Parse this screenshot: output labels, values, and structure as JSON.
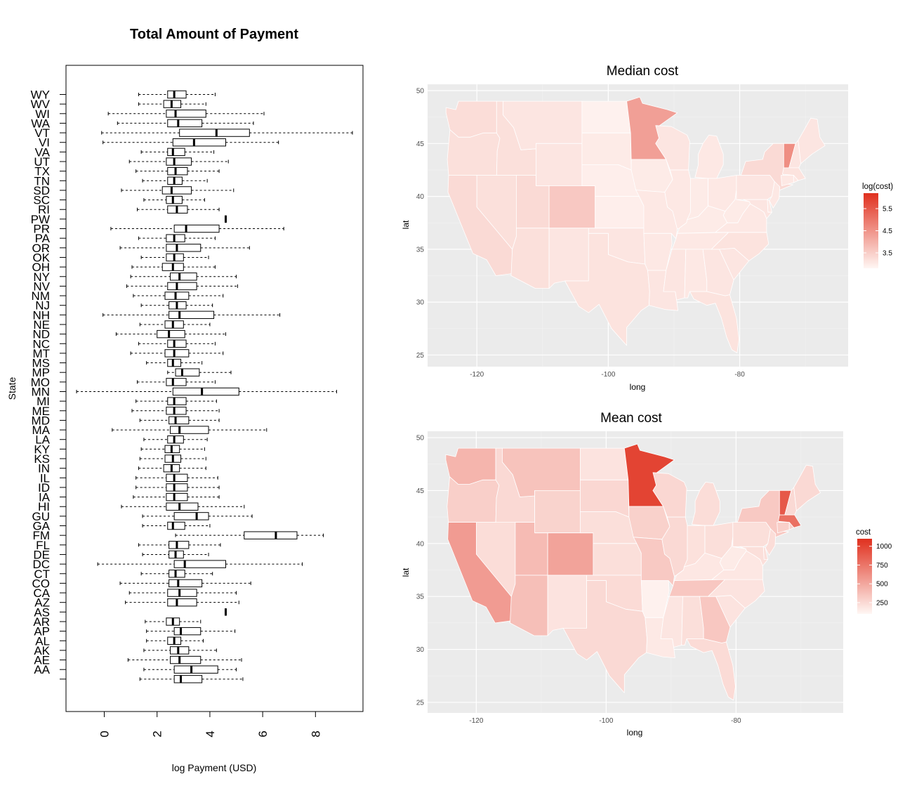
{
  "colors": {
    "panel_bg": "#ebebeb",
    "grid": "#ffffff",
    "map_low": "#fff7f4",
    "map_high": "#e0301e",
    "median_fill": "#fbece6",
    "state_border": "#ffffff"
  },
  "chart_data": [
    {
      "type": "boxplot",
      "title": "Total Amount of Payment",
      "xlabel": "log Payment (USD)",
      "ylabel": "State",
      "xlim": [
        -1.45,
        9.8
      ],
      "xticks": [
        0,
        2,
        4,
        6,
        8
      ],
      "orientation": "horizontal",
      "series": [
        {
          "state": "WY",
          "min": 1.3,
          "q1": 2.4,
          "median": 2.65,
          "q3": 3.1,
          "max": 4.2
        },
        {
          "state": "WV",
          "min": 1.3,
          "q1": 2.25,
          "median": 2.55,
          "q3": 2.9,
          "max": 3.85
        },
        {
          "state": "WI",
          "min": 0.15,
          "q1": 2.35,
          "median": 2.7,
          "q3": 3.85,
          "max": 6.05
        },
        {
          "state": "WA",
          "min": 0.5,
          "q1": 2.4,
          "median": 2.8,
          "q3": 3.7,
          "max": 5.65
        },
        {
          "state": "VT",
          "min": -0.1,
          "q1": 2.85,
          "median": 4.25,
          "q3": 5.5,
          "max": 9.4
        },
        {
          "state": "VI",
          "min": -0.05,
          "q1": 2.6,
          "median": 3.4,
          "q3": 4.6,
          "max": 6.6
        },
        {
          "state": "VA",
          "min": 1.4,
          "q1": 2.4,
          "median": 2.6,
          "q3": 3.05,
          "max": 4.15
        },
        {
          "state": "UT",
          "min": 0.95,
          "q1": 2.35,
          "median": 2.65,
          "q3": 3.3,
          "max": 4.7
        },
        {
          "state": "TX",
          "min": 1.2,
          "q1": 2.4,
          "median": 2.7,
          "q3": 3.15,
          "max": 4.35
        },
        {
          "state": "TN",
          "min": 1.45,
          "q1": 2.4,
          "median": 2.65,
          "q3": 2.95,
          "max": 3.9
        },
        {
          "state": "SD",
          "min": 0.65,
          "q1": 2.2,
          "median": 2.55,
          "q3": 3.3,
          "max": 4.9
        },
        {
          "state": "SC",
          "min": 1.5,
          "q1": 2.35,
          "median": 2.6,
          "q3": 2.95,
          "max": 3.8
        },
        {
          "state": "RI",
          "min": 1.25,
          "q1": 2.4,
          "median": 2.75,
          "q3": 3.15,
          "max": 4.35
        },
        {
          "state": "PW",
          "min": 4.6,
          "q1": 4.6,
          "median": 4.6,
          "q3": 4.6,
          "max": 4.6
        },
        {
          "state": "PR",
          "min": 0.25,
          "q1": 2.65,
          "median": 3.1,
          "q3": 4.35,
          "max": 6.8
        },
        {
          "state": "PA",
          "min": 1.3,
          "q1": 2.35,
          "median": 2.65,
          "q3": 3.05,
          "max": 4.2
        },
        {
          "state": "OR",
          "min": 0.6,
          "q1": 2.35,
          "median": 2.75,
          "q3": 3.65,
          "max": 5.5
        },
        {
          "state": "OK",
          "min": 1.4,
          "q1": 2.35,
          "median": 2.65,
          "q3": 3.0,
          "max": 3.95
        },
        {
          "state": "OH",
          "min": 1.05,
          "q1": 2.2,
          "median": 2.6,
          "q3": 3.0,
          "max": 4.2
        },
        {
          "state": "NY",
          "min": 1.0,
          "q1": 2.5,
          "median": 2.85,
          "q3": 3.5,
          "max": 5.0
        },
        {
          "state": "NV",
          "min": 0.85,
          "q1": 2.4,
          "median": 2.75,
          "q3": 3.5,
          "max": 5.05
        },
        {
          "state": "NM",
          "min": 1.1,
          "q1": 2.3,
          "median": 2.7,
          "q3": 3.2,
          "max": 4.5
        },
        {
          "state": "NJ",
          "min": 1.4,
          "q1": 2.45,
          "median": 2.75,
          "q3": 3.1,
          "max": 4.1
        },
        {
          "state": "NH",
          "min": -0.05,
          "q1": 2.45,
          "median": 2.85,
          "q3": 4.15,
          "max": 6.65
        },
        {
          "state": "NE",
          "min": 1.35,
          "q1": 2.3,
          "median": 2.6,
          "q3": 3.0,
          "max": 4.0
        },
        {
          "state": "ND",
          "min": 0.45,
          "q1": 2.0,
          "median": 2.45,
          "q3": 3.05,
          "max": 4.6
        },
        {
          "state": "NC",
          "min": 1.3,
          "q1": 2.4,
          "median": 2.65,
          "q3": 3.1,
          "max": 4.2
        },
        {
          "state": "MT",
          "min": 1.0,
          "q1": 2.3,
          "median": 2.65,
          "q3": 3.2,
          "max": 4.5
        },
        {
          "state": "MS",
          "min": 1.6,
          "q1": 2.4,
          "median": 2.6,
          "q3": 2.9,
          "max": 3.7
        },
        {
          "state": "MP",
          "min": 2.4,
          "q1": 2.7,
          "median": 2.95,
          "q3": 3.6,
          "max": 4.8
        },
        {
          "state": "MO",
          "min": 1.25,
          "q1": 2.35,
          "median": 2.6,
          "q3": 3.1,
          "max": 4.2
        },
        {
          "state": "MN",
          "min": -1.05,
          "q1": 2.6,
          "median": 3.7,
          "q3": 5.1,
          "max": 8.8
        },
        {
          "state": "MI",
          "min": 1.2,
          "q1": 2.4,
          "median": 2.65,
          "q3": 3.1,
          "max": 4.25
        },
        {
          "state": "ME",
          "min": 1.05,
          "q1": 2.35,
          "median": 2.65,
          "q3": 3.1,
          "max": 4.35
        },
        {
          "state": "MD",
          "min": 1.35,
          "q1": 2.45,
          "median": 2.7,
          "q3": 3.2,
          "max": 4.35
        },
        {
          "state": "MA",
          "min": 0.3,
          "q1": 2.5,
          "median": 2.85,
          "q3": 3.95,
          "max": 6.15
        },
        {
          "state": "LA",
          "min": 1.5,
          "q1": 2.4,
          "median": 2.65,
          "q3": 3.0,
          "max": 3.9
        },
        {
          "state": "KY",
          "min": 1.4,
          "q1": 2.3,
          "median": 2.55,
          "q3": 2.85,
          "max": 3.8
        },
        {
          "state": "KS",
          "min": 1.35,
          "q1": 2.3,
          "median": 2.6,
          "q3": 2.9,
          "max": 3.85
        },
        {
          "state": "IN",
          "min": 1.3,
          "q1": 2.25,
          "median": 2.55,
          "q3": 2.85,
          "max": 3.85
        },
        {
          "state": "IL",
          "min": 1.2,
          "q1": 2.35,
          "median": 2.65,
          "q3": 3.15,
          "max": 4.3
        },
        {
          "state": "ID",
          "min": 1.2,
          "q1": 2.35,
          "median": 2.65,
          "q3": 3.15,
          "max": 4.35
        },
        {
          "state": "IA",
          "min": 1.1,
          "q1": 2.35,
          "median": 2.65,
          "q3": 3.15,
          "max": 4.35
        },
        {
          "state": "HI",
          "min": 0.65,
          "q1": 2.35,
          "median": 2.85,
          "q3": 3.55,
          "max": 5.3
        },
        {
          "state": "GU",
          "min": 1.45,
          "q1": 2.65,
          "median": 3.5,
          "q3": 3.95,
          "max": 5.6
        },
        {
          "state": "GA",
          "min": 1.45,
          "q1": 2.4,
          "median": 2.6,
          "q3": 3.05,
          "max": 4.0
        },
        {
          "state": "FM",
          "min": 2.7,
          "q1": 5.3,
          "median": 6.5,
          "q3": 7.3,
          "max": 8.3
        },
        {
          "state": "FL",
          "min": 1.3,
          "q1": 2.45,
          "median": 2.75,
          "q3": 3.2,
          "max": 4.4
        },
        {
          "state": "DE",
          "min": 1.45,
          "q1": 2.45,
          "median": 2.7,
          "q3": 3.0,
          "max": 3.95
        },
        {
          "state": "DC",
          "min": -0.25,
          "q1": 2.65,
          "median": 3.05,
          "q3": 4.6,
          "max": 7.5
        },
        {
          "state": "CT",
          "min": 1.4,
          "q1": 2.45,
          "median": 2.7,
          "q3": 3.05,
          "max": 4.1
        },
        {
          "state": "CO",
          "min": 0.6,
          "q1": 2.45,
          "median": 2.8,
          "q3": 3.7,
          "max": 5.55
        },
        {
          "state": "CA",
          "min": 0.95,
          "q1": 2.4,
          "median": 2.85,
          "q3": 3.5,
          "max": 5.0
        },
        {
          "state": "AZ",
          "min": 0.8,
          "q1": 2.4,
          "median": 2.75,
          "q3": 3.5,
          "max": 5.1
        },
        {
          "state": "AS",
          "min": 4.6,
          "q1": 4.6,
          "median": 4.6,
          "q3": 4.6,
          "max": 4.6
        },
        {
          "state": "AR",
          "min": 1.55,
          "q1": 2.35,
          "median": 2.6,
          "q3": 2.85,
          "max": 3.65
        },
        {
          "state": "AP",
          "min": 1.6,
          "q1": 2.65,
          "median": 2.9,
          "q3": 3.65,
          "max": 4.95
        },
        {
          "state": "AL",
          "min": 1.6,
          "q1": 2.4,
          "median": 2.65,
          "q3": 2.9,
          "max": 3.75
        },
        {
          "state": "AK",
          "min": 1.5,
          "q1": 2.5,
          "median": 2.8,
          "q3": 3.2,
          "max": 4.25
        },
        {
          "state": "AE",
          "min": 0.9,
          "q1": 2.5,
          "median": 2.85,
          "q3": 3.65,
          "max": 5.2
        },
        {
          "state": "AA",
          "min": 1.5,
          "q1": 2.65,
          "median": 3.3,
          "q3": 4.3,
          "max": 5.0
        },
        {
          "state": "",
          "min": 1.35,
          "q1": 2.65,
          "median": 2.9,
          "q3": 3.7,
          "max": 5.25
        }
      ]
    },
    {
      "type": "choropleth",
      "title": "Median cost",
      "xlabel": "long",
      "ylabel": "lat",
      "xlim": [
        -127.5,
        -63.5
      ],
      "ylim": [
        23.9,
        50.6
      ],
      "xticks": [
        -120,
        -100,
        -80
      ],
      "yticks": [
        25,
        30,
        35,
        40,
        45,
        50
      ],
      "legend": {
        "title": "log(cost)",
        "labels": [
          "5.5",
          "4.5",
          "3.5"
        ],
        "range": [
          2.8,
          6.2
        ],
        "label_values": [
          5.5,
          4.5,
          3.5
        ]
      },
      "values": {
        "WA": 3.25,
        "OR": 3.2,
        "CA": 3.3,
        "NV": 3.2,
        "ID": 3.2,
        "MT": 3.1,
        "WY": 3.1,
        "UT": 3.3,
        "AZ": 3.2,
        "CO": 3.6,
        "NM": 3.1,
        "ND": 2.9,
        "SD": 3.0,
        "NE": 2.95,
        "KS": 2.95,
        "OK": 3.1,
        "TX": 3.15,
        "MN": 4.3,
        "IA": 3.0,
        "MO": 3.05,
        "AR": 3.05,
        "LA": 3.1,
        "WI": 3.1,
        "IL": 3.05,
        "MI": 3.05,
        "IN": 3.0,
        "OH": 3.05,
        "KY": 3.0,
        "TN": 3.05,
        "MS": 3.1,
        "AL": 3.05,
        "GA": 3.1,
        "FL": 3.15,
        "SC": 3.1,
        "NC": 3.15,
        "VA": 3.05,
        "WV": 3.0,
        "PA": 3.1,
        "NY": 3.3,
        "VT": 4.6,
        "NH": 3.1,
        "ME": 3.1,
        "MA": 3.15,
        "CT": 3.05,
        "RI": 3.05,
        "NJ": 3.05,
        "DE": 3.05,
        "MD": 3.1
      }
    },
    {
      "type": "choropleth",
      "title": "Mean cost",
      "xlabel": "long",
      "ylabel": "lat",
      "xlim": [
        -127.5,
        -63.5
      ],
      "ylim": [
        24.0,
        50.6
      ],
      "xticks": [
        -120,
        -100,
        -80
      ],
      "yticks": [
        25,
        30,
        35,
        40,
        45,
        50
      ],
      "legend": {
        "title": "cost",
        "labels": [
          "1000",
          "750",
          "500",
          "250"
        ],
        "range": [
          100,
          1100
        ],
        "label_values": [
          1000,
          750,
          500,
          250
        ]
      },
      "values": {
        "WA": 430,
        "OR": 300,
        "CA": 560,
        "NV": 230,
        "ID": 250,
        "MT": 360,
        "WY": 280,
        "UT": 400,
        "AZ": 380,
        "CO": 520,
        "NM": 200,
        "ND": 200,
        "SD": 260,
        "NE": 220,
        "KS": 220,
        "OK": 240,
        "TX": 250,
        "MN": 1000,
        "IA": 290,
        "MO": 330,
        "AR": 130,
        "LA": 170,
        "WI": 260,
        "IL": 250,
        "MI": 230,
        "IN": 210,
        "OH": 220,
        "KY": 180,
        "TN": 340,
        "MS": 190,
        "AL": 220,
        "GA": 340,
        "FL": 240,
        "SC": 200,
        "NC": 200,
        "VA": 180,
        "WV": 160,
        "PA": 220,
        "NY": 330,
        "VT": 900,
        "NH": 250,
        "ME": 250,
        "MA": 780,
        "CT": 300,
        "RI": 300,
        "NJ": 230,
        "DE": 220,
        "MD": 220
      }
    }
  ]
}
